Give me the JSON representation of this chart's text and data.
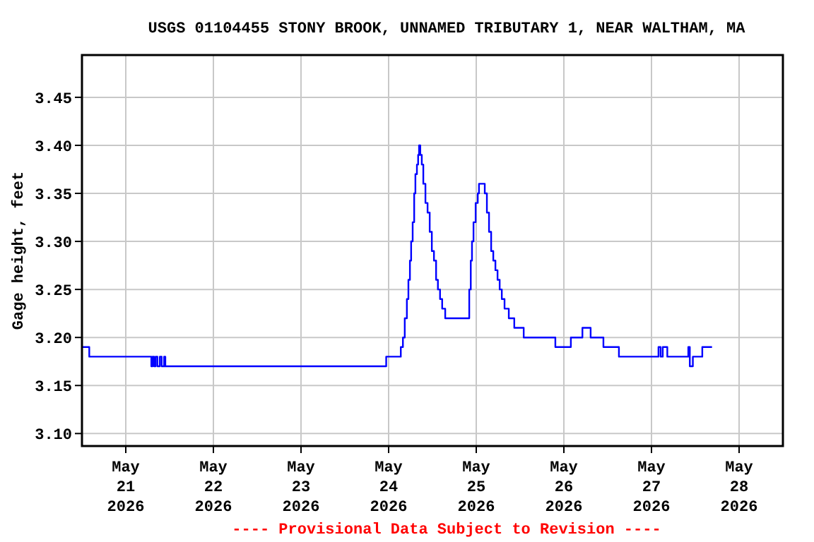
{
  "chart_data": {
    "type": "step",
    "title": "USGS 01104455 STONY BROOK, UNNAMED TRIBUTARY 1, NEAR WALTHAM, MA",
    "ylabel": "Gage height, feet",
    "annotations": [
      "---- Provisional Data Subject to Revision ----"
    ],
    "xlim": [
      "2026-05-20T12:00",
      "2026-05-28T12:00"
    ],
    "xticks": [
      {
        "value": "2026-05-21",
        "label": "May\n21\n2026"
      },
      {
        "value": "2026-05-22",
        "label": "May\n22\n2026"
      },
      {
        "value": "2026-05-23",
        "label": "May\n23\n2026"
      },
      {
        "value": "2026-05-24",
        "label": "May\n24\n2026"
      },
      {
        "value": "2026-05-25",
        "label": "May\n25\n2026"
      },
      {
        "value": "2026-05-26",
        "label": "May\n26\n2026"
      },
      {
        "value": "2026-05-27",
        "label": "May\n27\n2026"
      },
      {
        "value": "2026-05-28",
        "label": "May\n28\n2026"
      }
    ],
    "ylim": [
      3.087,
      3.494
    ],
    "yticks": [
      {
        "value": 3.1,
        "label": "3.10"
      },
      3.15,
      {
        "value": 3.2,
        "label": "3.20"
      },
      3.25,
      {
        "value": 3.3,
        "label": "3.30"
      },
      3.35,
      {
        "value": 3.4,
        "label": "3.40"
      },
      3.45
    ],
    "grid": true,
    "series": [
      {
        "color": "#0000ff",
        "x": [
          "2026-05-20T12:00",
          "2026-05-20T14:00",
          "2026-05-21T07:00",
          "2026-05-21T07:20",
          "2026-05-21T07:45",
          "2026-05-21T08:10",
          "2026-05-21T08:40",
          "2026-05-21T09:20",
          "2026-05-21T09:50",
          "2026-05-21T10:30",
          "2026-05-21T10:50",
          "2026-05-21T11:20",
          "2026-05-23T23:20",
          "2026-05-24T03:20",
          "2026-05-24T03:55",
          "2026-05-24T04:25",
          "2026-05-24T05:00",
          "2026-05-24T05:25",
          "2026-05-24T05:50",
          "2026-05-24T06:10",
          "2026-05-24T06:35",
          "2026-05-24T07:00",
          "2026-05-24T07:20",
          "2026-05-24T07:45",
          "2026-05-24T08:05",
          "2026-05-24T08:20",
          "2026-05-24T08:40",
          "2026-05-24T09:05",
          "2026-05-24T09:30",
          "2026-05-24T10:05",
          "2026-05-24T10:40",
          "2026-05-24T11:15",
          "2026-05-24T11:50",
          "2026-05-24T12:25",
          "2026-05-24T13:00",
          "2026-05-24T13:30",
          "2026-05-24T14:05",
          "2026-05-24T14:40",
          "2026-05-24T15:30",
          "2026-05-24T22:05",
          "2026-05-24T22:30",
          "2026-05-24T22:50",
          "2026-05-24T23:15",
          "2026-05-24T23:50",
          "2026-05-25T00:25",
          "2026-05-25T00:45",
          "2026-05-25T02:20",
          "2026-05-25T02:55",
          "2026-05-25T03:30",
          "2026-05-25T04:05",
          "2026-05-25T04:40",
          "2026-05-25T05:15",
          "2026-05-25T05:50",
          "2026-05-25T06:25",
          "2026-05-25T07:00",
          "2026-05-25T07:45",
          "2026-05-25T08:55",
          "2026-05-25T10:25",
          "2026-05-25T13:00",
          "2026-05-25T21:40",
          "2026-05-26T01:55",
          "2026-05-26T05:05",
          "2026-05-26T07:20",
          "2026-05-26T10:50",
          "2026-05-26T15:05",
          "2026-05-27T01:55",
          "2026-05-27T02:30",
          "2026-05-27T03:05",
          "2026-05-27T04:20",
          "2026-05-27T10:05",
          "2026-05-27T10:30",
          "2026-05-27T11:20",
          "2026-05-27T13:55",
          "2026-05-27T16:35"
        ],
        "values": [
          3.19,
          3.18,
          3.17,
          3.18,
          3.17,
          3.18,
          3.17,
          3.18,
          3.17,
          3.18,
          3.17,
          3.17,
          3.18,
          3.19,
          3.2,
          3.22,
          3.24,
          3.26,
          3.28,
          3.3,
          3.32,
          3.35,
          3.37,
          3.38,
          3.39,
          3.4,
          3.39,
          3.38,
          3.36,
          3.34,
          3.33,
          3.31,
          3.29,
          3.28,
          3.26,
          3.25,
          3.24,
          3.23,
          3.22,
          3.25,
          3.28,
          3.3,
          3.32,
          3.34,
          3.35,
          3.36,
          3.35,
          3.33,
          3.31,
          3.29,
          3.28,
          3.27,
          3.26,
          3.25,
          3.24,
          3.23,
          3.22,
          3.21,
          3.2,
          3.19,
          3.2,
          3.21,
          3.2,
          3.19,
          3.18,
          3.19,
          3.18,
          3.19,
          3.18,
          3.19,
          3.17,
          3.18,
          3.19,
          3.19
        ]
      }
    ]
  }
}
